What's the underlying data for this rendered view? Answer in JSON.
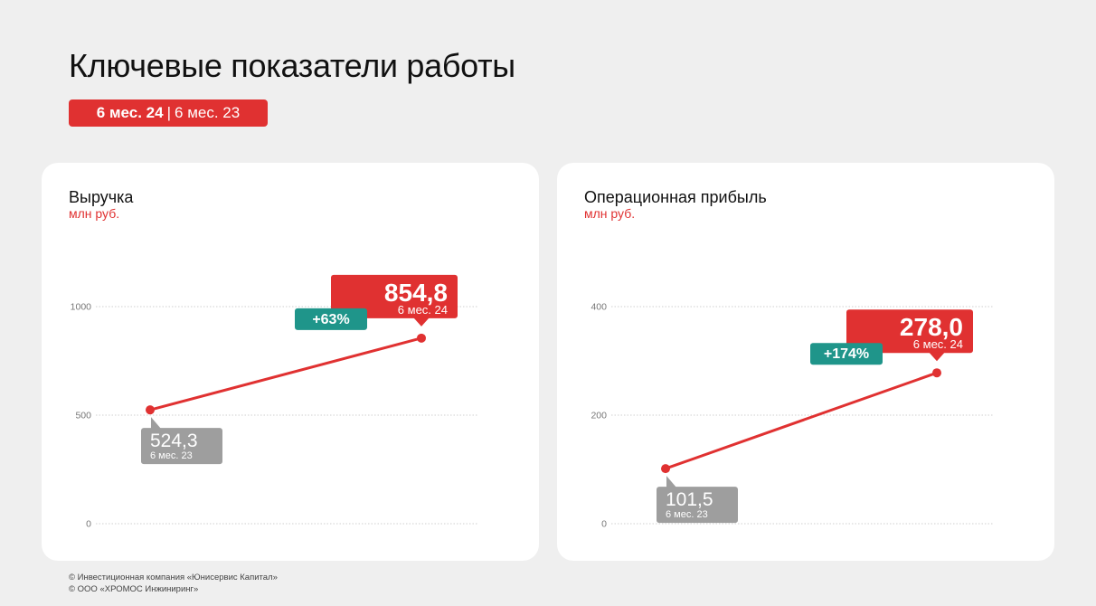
{
  "title": "Ключевые показатели работы",
  "period": {
    "current": "6 мес. 24",
    "separator": "|",
    "previous": "6 мес. 23"
  },
  "colors": {
    "accent": "#e03131",
    "growth": "#1f958a",
    "previous": "#9e9e9e",
    "background": "#efefef",
    "card": "#ffffff"
  },
  "chart_data": [
    {
      "type": "line",
      "title": "Выручка",
      "subtitle": "млн руб.",
      "ylim": [
        0,
        1000
      ],
      "yticks": [
        0,
        500,
        1000
      ],
      "ytick_labels": [
        "0",
        "500",
        "1000"
      ],
      "x": [
        "6 мес. 23",
        "6 мес. 24"
      ],
      "values": [
        524.3,
        854.8
      ],
      "value_labels": [
        "524,3",
        "854,8"
      ],
      "period_labels": [
        "6 мес. 23",
        "6 мес. 24"
      ],
      "change_label": "+63%",
      "grid": true
    },
    {
      "type": "line",
      "title": "Операционная прибыль",
      "subtitle": "млн руб.",
      "ylim": [
        0,
        400
      ],
      "yticks": [
        0,
        200,
        400
      ],
      "ytick_labels": [
        "0",
        "200",
        "400"
      ],
      "x": [
        "6 мес. 23",
        "6 мес. 24"
      ],
      "values": [
        101.5,
        278.0
      ],
      "value_labels": [
        "101,5",
        "278,0"
      ],
      "period_labels": [
        "6 мес. 23",
        "6 мес. 24"
      ],
      "change_label": "+174%",
      "grid": true
    }
  ],
  "footer": {
    "line1": "© Инвестиционная компания «Юнисервис Капитал»",
    "line2": "© ООО «ХРОМОС Инжиниринг»"
  }
}
